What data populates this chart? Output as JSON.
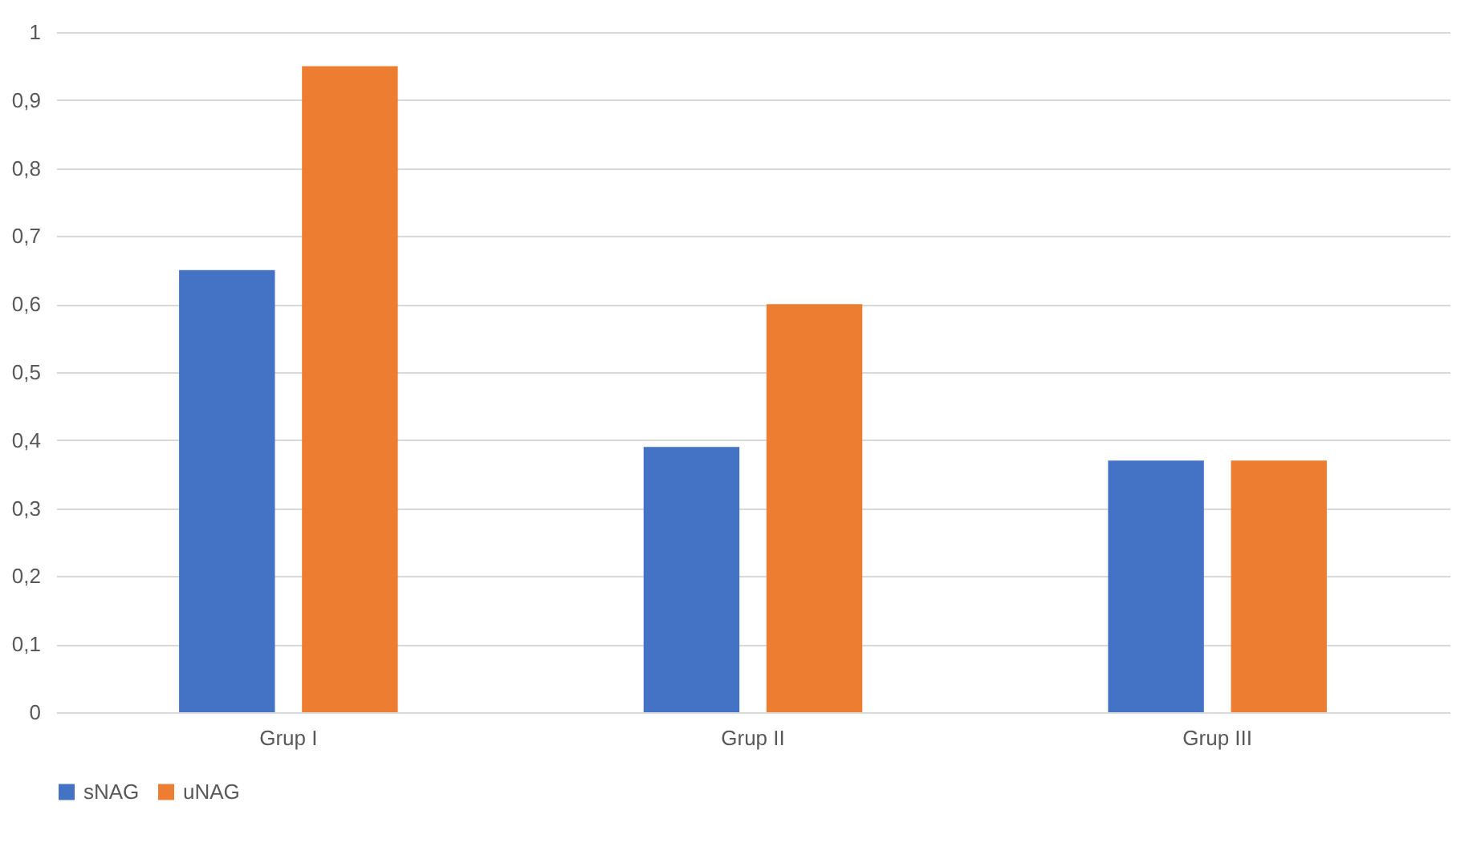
{
  "chart_data": {
    "type": "bar",
    "categories": [
      "Grup I",
      "Grup II",
      "Grup III"
    ],
    "series": [
      {
        "name": "sNAG",
        "color": "#4472c4",
        "values": [
          0.65,
          0.39,
          0.37
        ]
      },
      {
        "name": "uNAG",
        "color": "#ed7d31",
        "values": [
          0.95,
          0.6,
          0.37
        ]
      }
    ],
    "ylim": [
      0,
      1
    ],
    "yticks": [
      0,
      {
        "value": 0.1,
        "label": "0,1"
      },
      {
        "value": 0.2,
        "label": "0,2"
      },
      {
        "value": 0.3,
        "label": "0,3"
      },
      {
        "value": 0.4,
        "label": "0,4"
      },
      {
        "value": 0.5,
        "label": "0,5"
      },
      {
        "value": 0.6,
        "label": "0,6"
      },
      {
        "value": 0.7,
        "label": "0,7"
      },
      {
        "value": 0.8,
        "label": "0,8"
      },
      {
        "value": 0.9,
        "label": "0,9"
      },
      1
    ],
    "grid": "y",
    "legend": "bottom"
  }
}
